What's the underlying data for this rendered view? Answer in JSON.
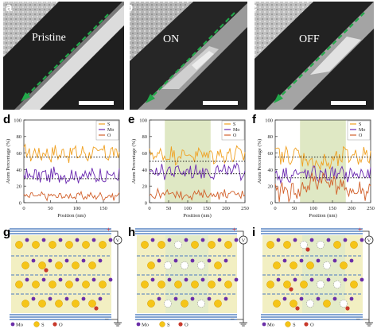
{
  "panel_letters": [
    "a",
    "b",
    "c",
    "d",
    "e",
    "f",
    "g",
    "h",
    "i"
  ],
  "tem_labels": [
    "Pristine",
    "ON",
    "OFF"
  ],
  "chart_axis": {
    "ylabel": "Atom Percentage (%)",
    "xlabel": "Position (nm)"
  },
  "legend_labels": [
    "S",
    "Mo",
    "O"
  ],
  "schematic": {
    "legend_labels": [
      "Mo",
      "S",
      "O"
    ],
    "plus_sign": "+",
    "minus_sign": "–",
    "source_symbol": "V"
  },
  "colors": {
    "S": "#f0a020",
    "Mo": "#6a28b0",
    "O": "#d2602a",
    "highlight": "#dfe8c4",
    "arrow": "#22a84a",
    "electrode": "#5a86c4",
    "film_bg": "#f2efc2",
    "mo_atom": "#6b2fa8",
    "s_atom": "#f5c518",
    "o_atom": "#c83a2c"
  },
  "chart_data": [
    {
      "panel": "d",
      "type": "line",
      "x_label": "Position (nm)",
      "y_label": "Atom Percentage (%)",
      "xlim": [
        0,
        180
      ],
      "ylim": [
        0,
        100
      ],
      "x_ticks": [
        "0",
        "50",
        "100",
        "150"
      ],
      "y_ticks": [
        "0",
        "20",
        "40",
        "60",
        "80",
        "100"
      ],
      "highlight_region": null,
      "legend": [
        "S",
        "Mo",
        "O"
      ],
      "series": [
        {
          "name": "S",
          "mean": 60,
          "amplitude": 9,
          "dotted_mean": 55
        },
        {
          "name": "Mo",
          "mean": 33,
          "amplitude": 8,
          "dotted_mean": 29
        },
        {
          "name": "O",
          "mean": 8,
          "amplitude": 4,
          "dotted_mean": null
        }
      ]
    },
    {
      "panel": "e",
      "type": "line",
      "x_label": "Position (nm)",
      "y_label": "Atom Percentage (%)",
      "xlim": [
        0,
        250
      ],
      "ylim": [
        0,
        100
      ],
      "x_ticks": [
        "0",
        "50",
        "100",
        "150",
        "200",
        "250"
      ],
      "y_ticks": [
        "0",
        "20",
        "40",
        "60",
        "80",
        "100"
      ],
      "highlight_region": [
        40,
        160
      ],
      "legend": [
        "S",
        "Mo",
        "O"
      ],
      "series": [
        {
          "name": "S",
          "mean": 58,
          "amplitude": 9,
          "dotted_mean": 50
        },
        {
          "name": "Mo",
          "mean": 38,
          "amplitude": 8,
          "dotted_mean": 35
        },
        {
          "name": "O",
          "mean": 10,
          "amplitude": 5,
          "dotted_mean": null
        }
      ]
    },
    {
      "panel": "f",
      "type": "line",
      "x_label": "Position (nm)",
      "y_label": "Atom Percentage (%)",
      "xlim": [
        0,
        250
      ],
      "ylim": [
        0,
        100
      ],
      "x_ticks": [
        "0",
        "50",
        "100",
        "150",
        "200",
        "250"
      ],
      "y_ticks": [
        "0",
        "20",
        "40",
        "60",
        "80",
        "100"
      ],
      "highlight_region": [
        65,
        185
      ],
      "legend": [
        "S",
        "Mo",
        "O"
      ],
      "series": [
        {
          "name": "S",
          "mean": 57,
          "amplitude": 10,
          "dotted_mean": 55
        },
        {
          "name": "Mo",
          "mean": 34,
          "amplitude": 8,
          "dotted_mean": 30
        },
        {
          "name": "O",
          "mean": 14,
          "amplitude": 10,
          "dotted_mean": null
        }
      ]
    }
  ]
}
